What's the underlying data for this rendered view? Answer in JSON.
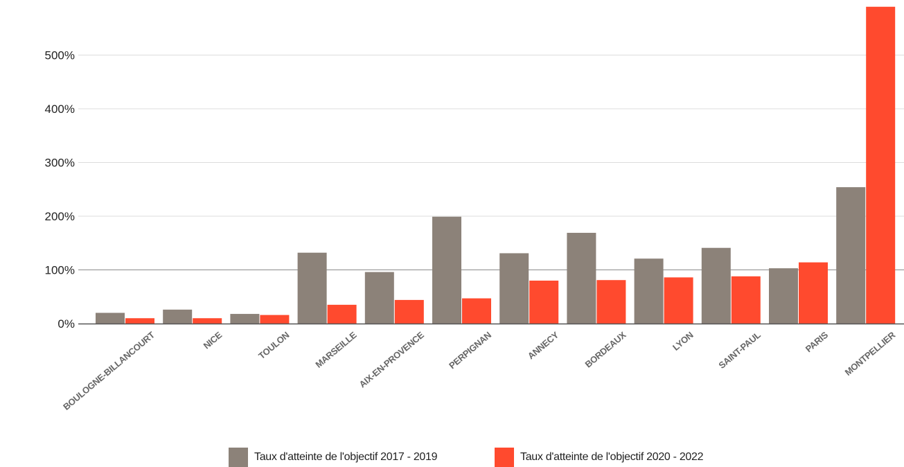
{
  "chart_data": {
    "type": "bar",
    "title": "",
    "xlabel": "",
    "ylabel": "",
    "ylim": [
      0,
      590
    ],
    "yticks": [
      {
        "value": 0,
        "label": "0%"
      },
      {
        "value": 100,
        "label": "100%"
      },
      {
        "value": 200,
        "label": "200%"
      },
      {
        "value": 300,
        "label": "300%"
      },
      {
        "value": 400,
        "label": "400%"
      },
      {
        "value": 500,
        "label": "500%"
      }
    ],
    "grid": true,
    "legend_position": "bottom",
    "categories": [
      "BOULOGNE-BILLANCOURT",
      "NICE",
      "TOULON",
      "MARSEILLE",
      "AIX-EN-PROVENCE",
      "PERPIGNAN",
      "ANNECY",
      "BORDEAUX",
      "LYON",
      "SAINT-PAUL",
      "PARIS",
      "MONTPELLIER"
    ],
    "series": [
      {
        "name": "Taux d'atteinte de l'objectif 2017 - 2019",
        "color": "#8c8279",
        "values": [
          20,
          26,
          18,
          132,
          96,
          199,
          131,
          169,
          121,
          141,
          103,
          254
        ]
      },
      {
        "name": "Taux d'atteinte de l'objectif 2020 - 2022",
        "color": "#ff4a2e",
        "values": [
          10,
          10,
          16,
          35,
          44,
          47,
          80,
          81,
          86,
          88,
          114,
          590
        ]
      }
    ]
  }
}
